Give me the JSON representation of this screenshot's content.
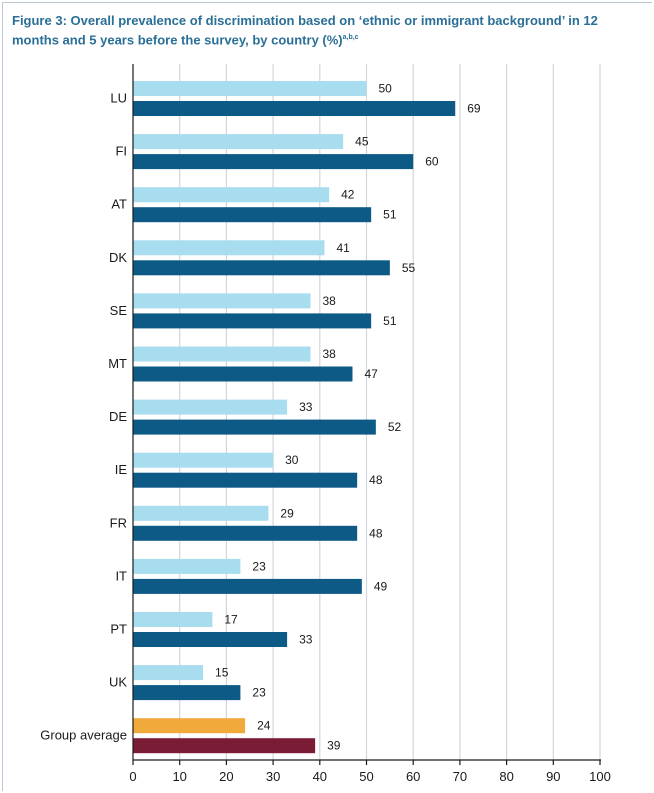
{
  "chart_data": {
    "type": "bar",
    "orientation": "horizontal",
    "title": "Figure 3:  Overall prevalence of discrimination based on ‘ethnic or immigrant background’ in 12 months and 5 years before the survey, by country (%)",
    "title_superscript": "a,b,c",
    "categories": [
      "LU",
      "FI",
      "AT",
      "DK",
      "SE",
      "MT",
      "DE",
      "IE",
      "FR",
      "IT",
      "PT",
      "UK",
      "Group average"
    ],
    "series": [
      {
        "name": "12 months",
        "values": [
          50,
          45,
          42,
          41,
          38,
          38,
          33,
          30,
          29,
          23,
          17,
          15,
          24
        ]
      },
      {
        "name": "5 years",
        "values": [
          69,
          60,
          51,
          55,
          51,
          47,
          52,
          48,
          48,
          49,
          33,
          23,
          39
        ]
      }
    ],
    "xlim": [
      0,
      100
    ],
    "xticks": [
      0,
      10,
      20,
      30,
      40,
      50,
      60,
      70,
      80,
      90,
      100
    ],
    "grid": "vertical",
    "colors": {
      "series_12m": "#a8dcef",
      "series_5y": "#0d5a86",
      "average_12m": "#f2a93b",
      "average_5y": "#7a1c36",
      "grid": "#cfd6dc",
      "axis": "#1a1a1a",
      "title": "#2a6f97"
    }
  }
}
